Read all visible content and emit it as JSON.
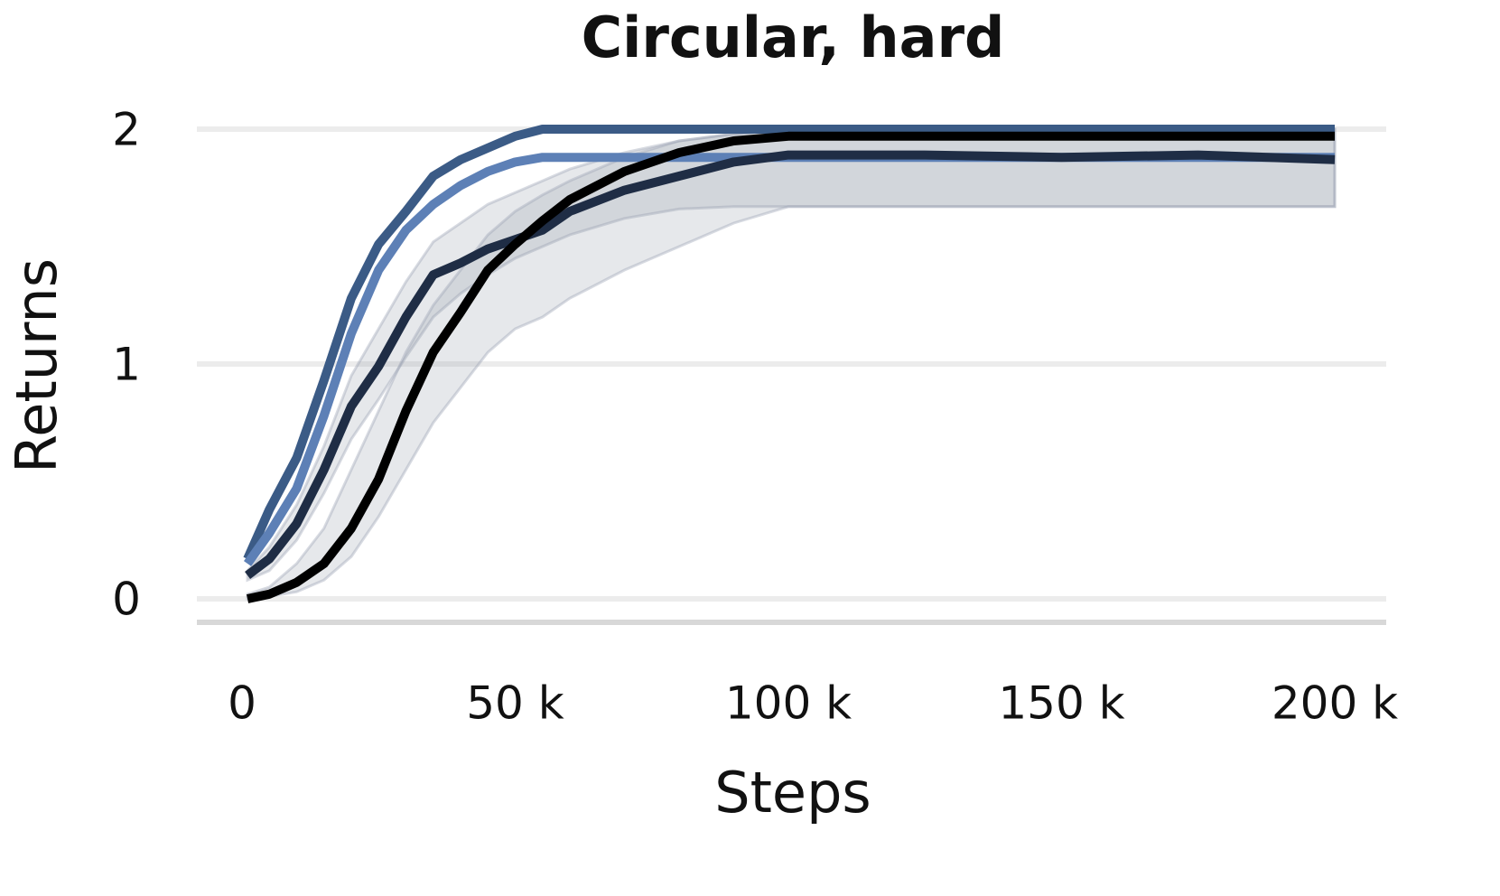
{
  "chart_data": {
    "type": "line",
    "title": "Circular, hard",
    "xlabel": "Steps",
    "ylabel": "Returns",
    "x": [
      1000,
      5000,
      10000,
      15000,
      20000,
      25000,
      30000,
      35000,
      40000,
      45000,
      50000,
      55000,
      60000,
      70000,
      80000,
      90000,
      100000,
      125000,
      150000,
      175000,
      200000
    ],
    "xlim": [
      -8000,
      210000
    ],
    "xticks": [
      0,
      {
        "value": 50000,
        "label": "50 k"
      },
      {
        "value": 100000,
        "label": "100 k"
      },
      {
        "value": 150000,
        "label": "150 k"
      },
      {
        "value": 200000,
        "label": "200 k"
      }
    ],
    "ylim": [
      -0.1,
      2.05
    ],
    "yticks": [
      0,
      1,
      2
    ],
    "grid": true,
    "series": [
      {
        "color": "#3b5b86",
        "values": [
          0.17,
          0.38,
          0.6,
          0.93,
          1.28,
          1.51,
          1.65,
          1.8,
          1.87,
          1.92,
          1.97,
          2,
          2,
          2,
          2,
          2,
          2,
          2,
          2,
          2,
          2
        ]
      },
      {
        "color": "#5d80b6",
        "values": [
          0.15,
          0.28,
          0.47,
          0.78,
          1.13,
          1.4,
          1.57,
          1.68,
          1.76,
          1.82,
          1.86,
          1.88,
          1.88,
          1.88,
          1.88,
          1.88,
          1.88,
          1.88,
          1.88,
          1.88,
          1.88
        ]
      },
      {
        "color": "#1f2d45",
        "values": [
          0.1,
          0.17,
          0.32,
          0.55,
          0.82,
          0.99,
          1.2,
          1.38,
          1.43,
          1.49,
          1.53,
          1.57,
          1.65,
          1.74,
          1.8,
          1.86,
          1.89,
          1.89,
          1.88,
          1.89,
          1.87
        ],
        "upper": [
          0.12,
          0.22,
          0.4,
          0.65,
          0.95,
          1.15,
          1.35,
          1.52,
          1.6,
          1.68,
          1.73,
          1.78,
          1.83,
          1.9,
          1.95,
          1.98,
          2,
          2,
          2,
          2,
          2
        ],
        "lower": [
          0.08,
          0.12,
          0.25,
          0.45,
          0.68,
          0.85,
          1.03,
          1.2,
          1.3,
          1.38,
          1.45,
          1.5,
          1.55,
          1.62,
          1.66,
          1.67,
          1.67,
          1.67,
          1.67,
          1.67,
          1.67
        ]
      },
      {
        "color": "#000000",
        "values": [
          0,
          0.02,
          0.07,
          0.15,
          0.3,
          0.51,
          0.8,
          1.05,
          1.22,
          1.4,
          1.51,
          1.61,
          1.7,
          1.82,
          1.9,
          1.95,
          1.97,
          1.97,
          1.97,
          1.97,
          1.97
        ],
        "upper": [
          0.02,
          0.05,
          0.15,
          0.3,
          0.55,
          0.8,
          1.05,
          1.25,
          1.4,
          1.55,
          1.65,
          1.72,
          1.78,
          1.88,
          1.95,
          1.98,
          2,
          2,
          2,
          2,
          2
        ],
        "lower": [
          0,
          0.01,
          0.03,
          0.08,
          0.18,
          0.35,
          0.55,
          0.75,
          0.9,
          1.05,
          1.15,
          1.2,
          1.28,
          1.4,
          1.5,
          1.6,
          1.67,
          1.67,
          1.67,
          1.67,
          1.67
        ]
      }
    ]
  }
}
